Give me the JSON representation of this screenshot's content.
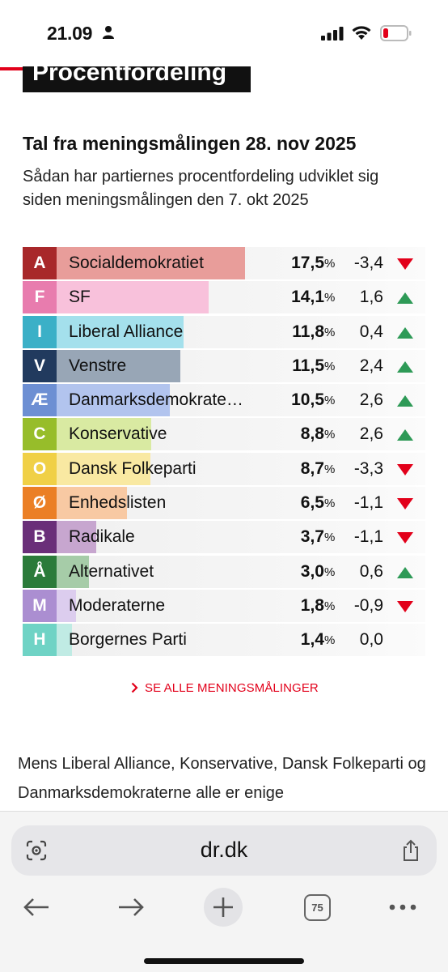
{
  "status_bar": {
    "time": "21.09"
  },
  "header": {
    "section_tag": "Procentfordeling"
  },
  "poll": {
    "title": "Tal fra meningsmålingen 28. nov 2025",
    "subtitle": "Sådan har partiernes procentfordeling udviklet sig siden meningsmålingen den 7. okt 2025",
    "percent_unit": "%",
    "parties": [
      {
        "letter": "A",
        "name": "Socialdemokratiet",
        "percent": "17,5",
        "change": "-3,4",
        "direction": "down",
        "share": 17.5,
        "color": "#a8282a",
        "bar_color": "#e89d9a"
      },
      {
        "letter": "F",
        "name": "SF",
        "percent": "14,1",
        "change": "1,6",
        "direction": "up",
        "share": 14.1,
        "color": "#e87cae",
        "bar_color": "#f8c1db"
      },
      {
        "letter": "I",
        "name": "Liberal Alliance",
        "percent": "11,8",
        "change": "0,4",
        "direction": "up",
        "share": 11.8,
        "color": "#3bb0c7",
        "bar_color": "#a4e0ec"
      },
      {
        "letter": "V",
        "name": "Venstre",
        "percent": "11,5",
        "change": "2,4",
        "direction": "up",
        "share": 11.5,
        "color": "#213a5e",
        "bar_color": "#98a6b6"
      },
      {
        "letter": "Æ",
        "name": "Danmarksdemokraterne",
        "percent": "10,5",
        "change": "2,6",
        "direction": "up",
        "share": 10.5,
        "color": "#6d8fd3",
        "bar_color": "#b2c4ee"
      },
      {
        "letter": "C",
        "name": "Konservative",
        "percent": "8,8",
        "change": "2,6",
        "direction": "up",
        "share": 8.8,
        "color": "#97bd2a",
        "bar_color": "#d9eaa2"
      },
      {
        "letter": "O",
        "name": "Dansk Folkeparti",
        "percent": "8,7",
        "change": "-3,3",
        "direction": "down",
        "share": 8.7,
        "color": "#f0d046",
        "bar_color": "#f9e9a2"
      },
      {
        "letter": "Ø",
        "name": "Enhedslisten",
        "percent": "6,5",
        "change": "-1,1",
        "direction": "down",
        "share": 6.5,
        "color": "#eb7f25",
        "bar_color": "#f8c9a3"
      },
      {
        "letter": "B",
        "name": "Radikale",
        "percent": "3,7",
        "change": "-1,1",
        "direction": "down",
        "share": 3.7,
        "color": "#6a2f79",
        "bar_color": "#c7a6cf"
      },
      {
        "letter": "Å",
        "name": "Alternativet",
        "percent": "3,0",
        "change": "0,6",
        "direction": "up",
        "share": 3.0,
        "color": "#2b7b3a",
        "bar_color": "#a6cca8"
      },
      {
        "letter": "M",
        "name": "Moderaterne",
        "percent": "1,8",
        "change": "-0,9",
        "direction": "down",
        "share": 1.8,
        "color": "#ab8ed1",
        "bar_color": "#dccdee"
      },
      {
        "letter": "H",
        "name": "Borgernes Parti",
        "percent": "1,4",
        "change": "0,0",
        "direction": "none",
        "share": 1.4,
        "color": "#6fd3c5",
        "bar_color": "#c0ebe4"
      }
    ],
    "see_all_label": "SE ALLE MENINGSMÅLINGER"
  },
  "article": {
    "body": "Mens Liberal Alliance, Konservative, Dansk Folkeparti og Danmarksdemokraterne alle er enige"
  },
  "browser": {
    "url": "dr.dk",
    "tab_count": "75"
  },
  "colors": {
    "accent": "#e2001a",
    "up_arrow": "#2e9a57",
    "down_arrow": "#e2001a"
  }
}
